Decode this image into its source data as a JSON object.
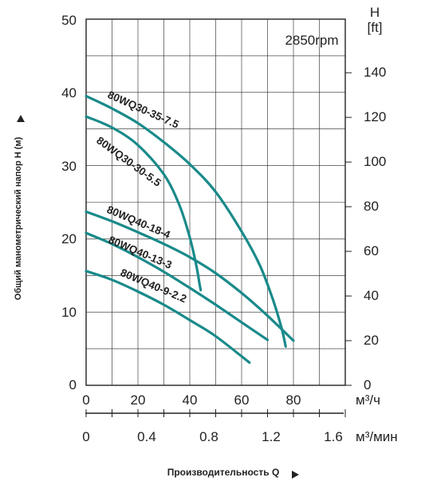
{
  "chart_data": {
    "type": "line",
    "annotation": "2850rpm",
    "ylabel": "Общий манометрический напор H (м)",
    "xlabel": "Производительность Q",
    "left_axis": {
      "ylim": [
        0,
        50
      ],
      "ticks": [
        "0",
        "10",
        "20",
        "30",
        "40",
        "50"
      ]
    },
    "right_axis": {
      "label_line1": "H",
      "label_line2": "[ft]",
      "ylim": [
        0,
        164
      ],
      "ticks": [
        "0",
        "20",
        "40",
        "60",
        "80",
        "100",
        "120",
        "140"
      ]
    },
    "x_axis_m3h": {
      "unit": "м³/ч",
      "xlim": [
        0,
        100
      ],
      "ticks": [
        "0",
        "20",
        "40",
        "60",
        "80"
      ]
    },
    "x_axis_m3min": {
      "unit": "м³/мин",
      "ticks": [
        "0",
        "0.4",
        "0.8",
        "1.2",
        "1.6"
      ]
    },
    "grid": true,
    "colors": {
      "curve": "#1a8a8a",
      "grid": "#222222"
    },
    "series": [
      {
        "name": "80WQ30-35-7.5",
        "x": [
          0,
          10,
          20,
          30,
          40,
          50,
          60,
          67,
          72,
          75.5,
          77
        ],
        "y": [
          39.5,
          37.8,
          35.8,
          33.2,
          30.2,
          26.4,
          21.0,
          16.4,
          11.8,
          7.7,
          5.3
        ]
      },
      {
        "name": "80WQ30-30-5.5",
        "x": [
          0,
          10,
          20,
          30,
          36,
          40,
          42.5,
          43.7,
          44.2
        ],
        "y": [
          36.7,
          35.2,
          32.8,
          28.8,
          24.6,
          20.2,
          16.4,
          14.0,
          13.0
        ]
      },
      {
        "name": "80WQ40-18-4",
        "x": [
          0,
          10,
          20,
          30,
          40,
          50,
          60,
          70,
          80
        ],
        "y": [
          23.7,
          22.4,
          20.9,
          19.3,
          17.5,
          15.3,
          12.6,
          9.5,
          6.1
        ]
      },
      {
        "name": "80WQ40-13-3",
        "x": [
          0,
          10,
          20,
          30,
          40,
          50,
          60,
          70
        ],
        "y": [
          20.8,
          19.3,
          17.5,
          15.5,
          13.3,
          11.0,
          8.6,
          6.2
        ]
      },
      {
        "name": "80WQ40-9-2.2",
        "x": [
          0,
          10,
          20,
          30,
          40,
          50,
          63
        ],
        "y": [
          15.6,
          14.4,
          12.8,
          11.0,
          8.9,
          6.7,
          3.1
        ]
      }
    ]
  }
}
